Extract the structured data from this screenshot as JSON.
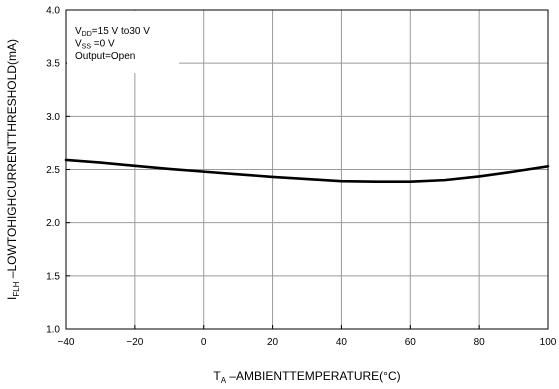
{
  "chart_data": {
    "type": "line",
    "title": "",
    "xlabel": {
      "main": "T",
      "sub": "A",
      "rest": " –AMBIENTTEMPERATURE(°C)"
    },
    "ylabel": {
      "main": "I",
      "sub": "FLH",
      "rest": " –LOWTOHIGHCURRENTTHRESHOLD(mA)"
    },
    "xlim": [
      -40,
      100
    ],
    "ylim": [
      1.0,
      4.0
    ],
    "x_ticks": [
      -40,
      -20,
      0,
      20,
      40,
      60,
      80,
      100
    ],
    "x_tick_labels": [
      "−40",
      "−20",
      "0",
      "20",
      "40",
      "60",
      "80",
      "100"
    ],
    "y_ticks": [
      1.0,
      1.5,
      2.0,
      2.5,
      3.0,
      3.5,
      4.0
    ],
    "y_tick_labels": [
      "1.0",
      "1.5",
      "2.0",
      "2.5",
      "3.0",
      "3.5",
      "4.0"
    ],
    "grid": true,
    "annotation": [
      {
        "main": "V",
        "sub": "DD",
        "rest": "=15 V  to30 V"
      },
      {
        "main": "V",
        "sub": "SS",
        "rest": " =0 V"
      },
      {
        "main": "Output=Open",
        "sub": "",
        "rest": ""
      }
    ],
    "series": [
      {
        "x": [
          -40,
          -30,
          -20,
          -10,
          0,
          10,
          20,
          30,
          40,
          50,
          60,
          70,
          80,
          90,
          100
        ],
        "y": [
          2.59,
          2.565,
          2.535,
          2.505,
          2.48,
          2.455,
          2.43,
          2.41,
          2.39,
          2.385,
          2.385,
          2.4,
          2.435,
          2.48,
          2.53
        ]
      }
    ]
  }
}
